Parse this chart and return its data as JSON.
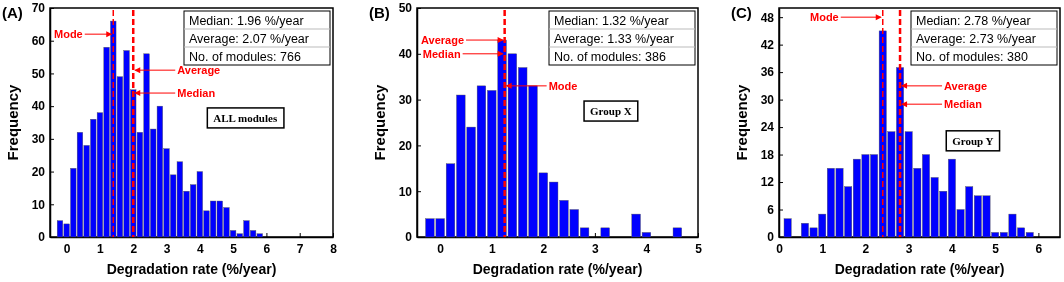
{
  "chart_data": [
    {
      "type": "histogram",
      "title": "(A)",
      "xlabel": "Degradation rate (%/year)",
      "ylabel": "Frequency",
      "color": "#0000ff",
      "bins": [
        -0.3,
        -0.1,
        0.1,
        0.3,
        0.5,
        0.7,
        0.9,
        1.1,
        1.3,
        1.5,
        1.7,
        1.9,
        2.1,
        2.3,
        2.5,
        2.7,
        2.9,
        3.1,
        3.3,
        3.5,
        3.7,
        3.9,
        4.1,
        4.3,
        4.5,
        4.7,
        4.9,
        5.1,
        5.3,
        5.5,
        5.7,
        5.9
      ],
      "values": [
        5,
        4,
        21,
        32,
        28,
        36,
        38,
        58,
        66,
        49,
        57,
        45,
        32,
        56,
        33,
        40,
        27,
        19,
        23,
        14,
        16,
        20,
        8,
        11,
        11,
        9,
        2,
        1,
        5,
        2,
        1
      ],
      "xlim": [
        -0.5,
        8
      ],
      "xticks": [
        0,
        1,
        2,
        3,
        4,
        5,
        6,
        7,
        8
      ],
      "ylim": [
        0,
        70
      ],
      "yticks": [
        0,
        10,
        20,
        30,
        40,
        50,
        60,
        70
      ],
      "ref_lines": [
        {
          "axis": "x",
          "value": 1.4,
          "color": "#ff0000",
          "line_style": "dashed"
        },
        {
          "axis": "x",
          "value": 2.0,
          "color": "#ff0000",
          "line_style": "dashed"
        }
      ],
      "annotations": [
        "Median: 1.96 %/year",
        "Average: 2.07 %/year",
        "No. of modules: 766",
        "ALL modules",
        {
          "text": "Mode",
          "x": 1.4,
          "y": 62
        },
        {
          "text": "Average",
          "x": 2.0,
          "y": 51
        },
        {
          "text": "Median",
          "x": 2.0,
          "y": 44
        }
      ]
    },
    {
      "type": "histogram",
      "title": "(B)",
      "xlabel": "Degradation rate (%/year)",
      "ylabel": "Frequency",
      "color": "#0000ff",
      "bins": [
        -0.3,
        -0.1,
        0.1,
        0.3,
        0.5,
        0.7,
        0.9,
        1.1,
        1.3,
        1.5,
        1.7,
        1.9,
        2.1,
        2.3,
        2.5,
        2.7,
        2.9,
        3.1,
        3.3,
        3.5,
        3.7,
        3.9,
        4.1,
        4.3,
        4.5,
        4.7
      ],
      "values": [
        4,
        4,
        16,
        31,
        24,
        33,
        32,
        43,
        40,
        37,
        33,
        14,
        12,
        8,
        6,
        2,
        0,
        2,
        0,
        0,
        5,
        1,
        0,
        0,
        2
      ],
      "xlim": [
        -0.45,
        5
      ],
      "xticks": [
        0,
        1,
        2,
        3,
        4,
        5
      ],
      "ylim": [
        0,
        50
      ],
      "yticks": [
        0,
        10,
        20,
        30,
        40,
        50
      ],
      "ref_lines": [
        {
          "axis": "x",
          "value": 1.25,
          "color": "#ff0000",
          "line_style": "dashed"
        }
      ],
      "annotations": [
        "Median: 1.32 %/year",
        "Average: 1.33 %/year",
        "No. of modules: 386",
        "Group X",
        {
          "text": "Average",
          "x": 1.25,
          "y": 43
        },
        {
          "text": "Median",
          "x": 1.25,
          "y": 40
        },
        {
          "text": "Mode",
          "x": 1.25,
          "y": 33
        }
      ]
    },
    {
      "type": "histogram",
      "title": "(C)",
      "xlabel": "Degradation rate (%/year)",
      "ylabel": "Frequency",
      "color": "#0000ff",
      "bins": [
        0.1,
        0.3,
        0.5,
        0.7,
        0.9,
        1.1,
        1.3,
        1.5,
        1.7,
        1.9,
        2.1,
        2.3,
        2.5,
        2.7,
        2.9,
        3.1,
        3.3,
        3.5,
        3.7,
        3.9,
        4.1,
        4.3,
        4.5,
        4.7,
        4.9,
        5.1,
        5.3,
        5.5,
        5.7,
        5.9
      ],
      "values": [
        4,
        0,
        3,
        2,
        5,
        15,
        15,
        11,
        17,
        18,
        18,
        45,
        23,
        37,
        23,
        15,
        18,
        13,
        10,
        17,
        6,
        11,
        9,
        9,
        1,
        1,
        5,
        2,
        1
      ],
      "xlim": [
        0,
        6.5
      ],
      "xticks": [
        0,
        1,
        2,
        3,
        4,
        5,
        6
      ],
      "ylim": [
        0,
        50
      ],
      "yticks": [
        0,
        6,
        12,
        18,
        24,
        30,
        36,
        42,
        48
      ],
      "ref_lines": [
        {
          "axis": "x",
          "value": 2.4,
          "color": "#ff0000",
          "line_style": "dashed"
        },
        {
          "axis": "x",
          "value": 2.8,
          "color": "#ff0000",
          "line_style": "dashed"
        }
      ],
      "annotations": [
        "Median: 2.78 %/year",
        "Average: 2.73 %/year",
        "No. of modules: 380",
        "Group Y",
        {
          "text": "Mode",
          "x": 2.4,
          "y": 48
        },
        {
          "text": "Average",
          "x": 2.8,
          "y": 33
        },
        {
          "text": "Median",
          "x": 2.8,
          "y": 29
        }
      ]
    }
  ]
}
